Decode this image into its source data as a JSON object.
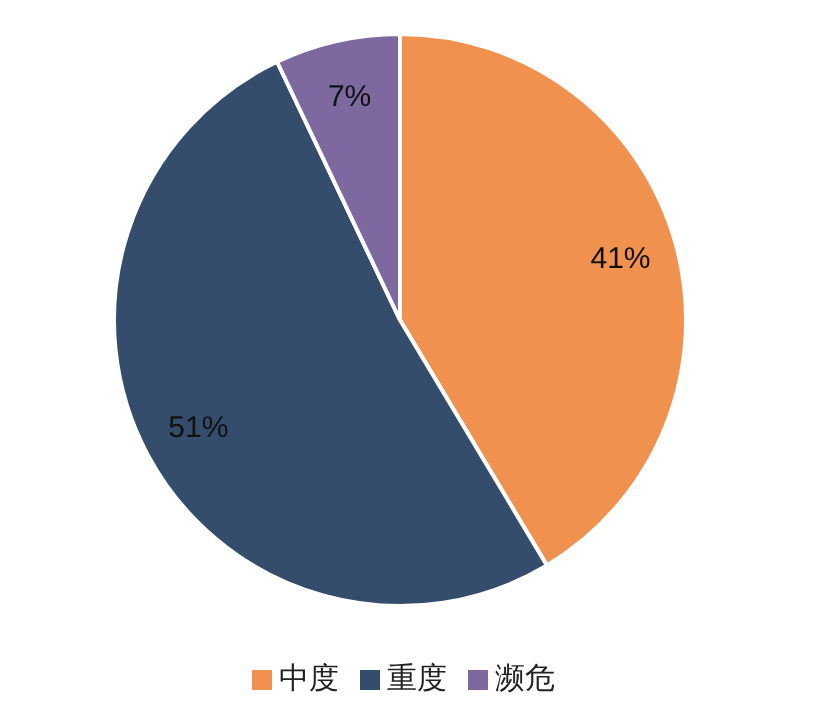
{
  "chart_data": {
    "type": "pie",
    "categories": [
      "中度",
      "重度",
      "濒危"
    ],
    "values": [
      41,
      51,
      7
    ],
    "colors": [
      "#f0914f",
      "#344d6d",
      "#7d68a0"
    ],
    "value_labels": [
      "41%",
      "51%",
      "7%"
    ],
    "legend": "bottom"
  }
}
